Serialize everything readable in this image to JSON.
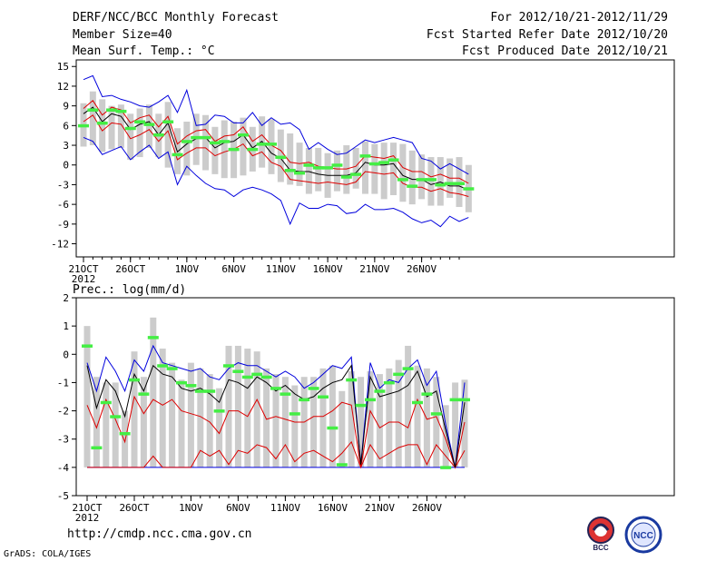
{
  "header": {
    "title": "DERF/NCC/BCC Monthly Forecast",
    "member_size": "Member Size=40",
    "var1": "Mean Surf. Temp.: °C",
    "period": "For 2012/10/21-2012/11/29",
    "started": "Fcst Started Refer Date 2012/10/20",
    "produced": "Fcst Produced Date 2012/10/21"
  },
  "footer": {
    "url": "http://cmdp.ncc.cma.gov.cn",
    "grads": "GrADS: COLA/IGES",
    "logo1_text": "BCC",
    "logo2_text": "NCC"
  },
  "colors": {
    "max_min": "#0000dd",
    "pct": "#dd0000",
    "mean": "#000000",
    "obs_bar": "#44ee44",
    "spread": "#cccccc"
  },
  "chart_data": [
    {
      "type": "line",
      "title": "Mean Surf. Temp.: °C",
      "ylabel": "°C",
      "ylim": [
        -14,
        16
      ],
      "yticks": [
        -12,
        -9,
        -6,
        -3,
        0,
        3,
        6,
        9,
        12,
        15
      ],
      "xticks": [
        {
          "day": 0,
          "label": "21OCT"
        },
        {
          "day": 5,
          "label": "26OCT"
        },
        {
          "day": 11,
          "label": "1NOV"
        },
        {
          "day": 16,
          "label": "6NOV"
        },
        {
          "day": 21,
          "label": "11NOV"
        },
        {
          "day": 26,
          "label": "16NOV"
        },
        {
          "day": 31,
          "label": "21NOV"
        },
        {
          "day": 36,
          "label": "26NOV"
        }
      ],
      "year_label": "2012",
      "series": [
        {
          "name": "max",
          "values": [
            13,
            13.6,
            10.4,
            10.6,
            10,
            9.6,
            9,
            8.8,
            9.6,
            10.6,
            8,
            11.4,
            6,
            6.2,
            7.6,
            7.4,
            6.4,
            6.4,
            8,
            6,
            7.2,
            6.2,
            6.4,
            5.4,
            2.4,
            3.4,
            2.4,
            1.6,
            1.8,
            2.8,
            3.8,
            3.4,
            3.8,
            4.2,
            3.8,
            3.4,
            1,
            0.6,
            -0.6,
            0.2,
            -0.6,
            -1.4
          ]
        },
        {
          "name": "p90",
          "values": [
            8.6,
            9.8,
            7.6,
            8.8,
            8.4,
            6.4,
            7.2,
            7.6,
            5.8,
            7.4,
            3.2,
            4.4,
            5.2,
            5.4,
            3.6,
            4.4,
            4.6,
            5.8,
            3.6,
            4.6,
            3,
            2.2,
            0.4,
            0.2,
            0.4,
            -0.2,
            -0.4,
            -0.6,
            -0.6,
            -0.2,
            1.4,
            1.2,
            1,
            1.4,
            -0.4,
            -1,
            -1,
            -1.8,
            -1.4,
            -2,
            -2,
            -2.8
          ]
        },
        {
          "name": "mean",
          "values": [
            7.8,
            8.8,
            6.6,
            7.8,
            7.4,
            5.4,
            6.2,
            6.6,
            4.6,
            6.4,
            2,
            3.2,
            4,
            4.2,
            2.6,
            3.4,
            3.6,
            4.6,
            2.6,
            3.6,
            1.8,
            1,
            -0.8,
            -1,
            -1,
            -1.4,
            -1.6,
            -1.6,
            -1.6,
            -1.2,
            0.4,
            0,
            0,
            0.2,
            -1.6,
            -2.2,
            -2.2,
            -3,
            -2.6,
            -3.2,
            -3.2,
            -3.8
          ]
        },
        {
          "name": "p10",
          "values": [
            6.6,
            7.6,
            5.2,
            6.4,
            6.2,
            4,
            4.6,
            5.4,
            3.6,
            5.2,
            0.8,
            1.8,
            2.6,
            2.6,
            1.4,
            2,
            2.4,
            3.2,
            1.4,
            2,
            0.4,
            -0.2,
            -2.2,
            -2.4,
            -2.6,
            -2.8,
            -2.6,
            -2.8,
            -3,
            -2.6,
            -1,
            -1.2,
            -1.4,
            -1.2,
            -2.8,
            -3.4,
            -3.4,
            -4,
            -3.6,
            -4.2,
            -4.4,
            -4.8
          ]
        },
        {
          "name": "min",
          "values": [
            4.2,
            3.6,
            1.6,
            2.2,
            2.8,
            0.8,
            2,
            3,
            1,
            2,
            -3,
            -0.2,
            -1.6,
            -2.8,
            -3.6,
            -3.8,
            -4.8,
            -3.8,
            -3.4,
            -3.8,
            -4.4,
            -5.4,
            -9,
            -5.8,
            -6.6,
            -6.6,
            -6,
            -6.2,
            -7.4,
            -7.2,
            -6,
            -6.8,
            -6.8,
            -6.6,
            -7.2,
            -8.2,
            -8.8,
            -8.4,
            -9.4,
            -7.8,
            -8.6,
            -8
          ]
        },
        {
          "name": "obs",
          "values": [
            6,
            8.4,
            6.4,
            8.4,
            8.2,
            5.6,
            6.6,
            6.2,
            4.6,
            6.6,
            1.6,
            3.6,
            4.2,
            4.2,
            3.4,
            3.6,
            2.4,
            4.6,
            2.4,
            3.2,
            3.2,
            1.2,
            -0.8,
            -1.2,
            0,
            -0.4,
            -0.4,
            0,
            -1.8,
            -1.4,
            1.4,
            0.2,
            0.4,
            0.8,
            -2.2,
            -3.2,
            -2.2,
            -2.2,
            -3,
            -2.8,
            -2.8,
            -3.6
          ]
        },
        {
          "name": "spread_low",
          "values": [
            2.8,
            3,
            2,
            2.4,
            2.6,
            0.8,
            1.2,
            2.6,
            1.2,
            -0.4,
            -1.4,
            -1.6,
            0,
            -0.8,
            -1.4,
            -2,
            -2,
            -1.6,
            -1,
            -0.4,
            -1.4,
            -2.6,
            -3,
            -3.2,
            -4.4,
            -4,
            -5,
            -4,
            -4.4,
            -3.6,
            -4.4,
            -4.4,
            -5.2,
            -4.6,
            -5.6,
            -6,
            -5.2,
            -6.2,
            -6.2,
            -5,
            -6.4,
            -7.2
          ]
        },
        {
          "name": "spread_high",
          "values": [
            9.4,
            11.2,
            10,
            9,
            9.2,
            7.8,
            8.6,
            9.2,
            7.8,
            9.6,
            5.6,
            6.6,
            7.8,
            7.6,
            5.8,
            6.8,
            6.6,
            7.2,
            5.8,
            7.4,
            7,
            5.4,
            4.8,
            3.4,
            2.6,
            2.6,
            1.8,
            2.2,
            3,
            2.6,
            3.6,
            3.2,
            3.4,
            3.4,
            3.2,
            2.2,
            1.6,
            1.2,
            1.2,
            1,
            1.2,
            0
          ]
        }
      ]
    },
    {
      "type": "line",
      "title": "Prec.: log(mm/d)",
      "ylabel": "log(mm/d)",
      "ylim": [
        -5,
        2
      ],
      "yticks": [
        -5,
        -4,
        -3,
        -2,
        -1,
        0,
        1,
        2
      ],
      "xticks": [
        {
          "day": 0,
          "label": "21OCT"
        },
        {
          "day": 5,
          "label": "26OCT"
        },
        {
          "day": 11,
          "label": "1NOV"
        },
        {
          "day": 16,
          "label": "6NOV"
        },
        {
          "day": 21,
          "label": "11NOV"
        },
        {
          "day": 26,
          "label": "16NOV"
        },
        {
          "day": 31,
          "label": "21NOV"
        },
        {
          "day": 36,
          "label": "26NOV"
        }
      ],
      "year_label": "2012",
      "series": [
        {
          "name": "max",
          "values": [
            -0.3,
            -1.3,
            -0.1,
            -0.6,
            -1.3,
            -0.2,
            -0.6,
            0.3,
            -0.3,
            -0.4,
            -0.5,
            -0.6,
            -0.5,
            -0.8,
            -0.9,
            -0.5,
            -0.3,
            -0.4,
            -0.4,
            -0.6,
            -0.8,
            -0.6,
            -0.8,
            -1.2,
            -1.0,
            -0.7,
            -0.4,
            -0.5,
            -0.1,
            -3.9,
            -0.3,
            -1.2,
            -0.9,
            -1.0,
            -0.5,
            -0.2,
            -1.1,
            -0.6,
            -2.5,
            -4.0,
            -1.0
          ]
        },
        {
          "name": "mean",
          "values": [
            -0.4,
            -1.9,
            -0.9,
            -1.3,
            -2.2,
            -0.7,
            -1.3,
            -0.4,
            -0.7,
            -0.8,
            -1.2,
            -1.3,
            -1.2,
            -1.4,
            -1.7,
            -0.9,
            -1.0,
            -1.2,
            -0.8,
            -1.0,
            -1.3,
            -1.1,
            -1.4,
            -1.6,
            -1.5,
            -1.2,
            -1.0,
            -0.9,
            -0.4,
            -3.9,
            -0.8,
            -1.5,
            -1.4,
            -1.3,
            -1.1,
            -0.6,
            -1.5,
            -1.3,
            -2.7,
            -4.0,
            -1.7
          ]
        },
        {
          "name": "p10",
          "values": [
            -1.8,
            -2.6,
            -1.6,
            -2.3,
            -3.1,
            -1.5,
            -2.1,
            -1.6,
            -1.8,
            -1.6,
            -2.0,
            -2.1,
            -2.2,
            -2.4,
            -2.8,
            -2.0,
            -2.0,
            -2.2,
            -1.6,
            -2.3,
            -2.2,
            -2.3,
            -2.4,
            -2.4,
            -2.2,
            -2.2,
            -2.0,
            -1.7,
            -1.8,
            -4.0,
            -2.0,
            -2.6,
            -2.4,
            -2.4,
            -2.6,
            -1.6,
            -2.3,
            -2.2,
            -3.0,
            -4.0,
            -2.4
          ]
        },
        {
          "name": "p25",
          "values": [
            -4.0,
            -4.0,
            -4.0,
            -4.0,
            -4.0,
            -4.0,
            -4.0,
            -3.6,
            -4.0,
            -4.0,
            -4.0,
            -4.0,
            -3.4,
            -3.6,
            -3.4,
            -3.9,
            -3.4,
            -3.5,
            -3.2,
            -3.3,
            -3.7,
            -3.2,
            -3.8,
            -3.5,
            -3.4,
            -3.6,
            -3.8,
            -3.5,
            -3.1,
            -4.0,
            -3.2,
            -3.7,
            -3.5,
            -3.3,
            -3.2,
            -3.2,
            -3.9,
            -3.2,
            -3.6,
            -4.0,
            -3.4
          ]
        },
        {
          "name": "min",
          "values": [
            -4.0,
            -4.0,
            -4.0,
            -4.0,
            -4.0,
            -4.0,
            -4.0,
            -4.0,
            -4.0,
            -4.0,
            -4.0,
            -4.0,
            -4.0,
            -4.0,
            -4.0,
            -4.0,
            -4.0,
            -4.0,
            -4.0,
            -4.0,
            -4.0,
            -4.0,
            -4.0,
            -4.0,
            -4.0,
            -4.0,
            -4.0,
            -4.0,
            -4.0,
            -4.0,
            -4.0,
            -4.0,
            -4.0,
            -4.0,
            -4.0,
            -4.0,
            -4.0,
            -4.0,
            -4.0,
            -4.0,
            -4.0
          ]
        },
        {
          "name": "obs",
          "values": [
            0.3,
            -3.3,
            -1.7,
            -2.2,
            -2.8,
            -0.9,
            -1.4,
            0.6,
            -0.4,
            -0.5,
            -1.0,
            -1.1,
            -1.3,
            -1.3,
            -2.0,
            -0.4,
            -0.6,
            -0.8,
            -0.7,
            -0.8,
            -1.2,
            -1.4,
            -2.1,
            -1.6,
            -1.2,
            -1.5,
            -2.6,
            -3.9,
            -0.9,
            -1.8,
            -1.6,
            -1.3,
            -1.0,
            -0.7,
            -0.5,
            -1.7,
            -1.4,
            -2.1,
            -4.0,
            -1.6,
            -1.6
          ]
        },
        {
          "name": "spread_low",
          "values": [
            -4.0,
            -4.0,
            -4.0,
            -4.0,
            -4.0,
            -4.0,
            -4.0,
            -4.0,
            -4.0,
            -4.0,
            -4.0,
            -4.0,
            -4.0,
            -4.0,
            -4.0,
            -4.0,
            -4.0,
            -4.0,
            -4.0,
            -4.0,
            -4.0,
            -4.0,
            -4.0,
            -4.0,
            -4.0,
            -4.0,
            -4.0,
            -4.0,
            -4.0,
            -4.0,
            -4.0,
            -4.0,
            -4.0,
            -4.0,
            -4.0,
            -4.0,
            -4.0,
            -4.0,
            -4.0,
            -4.0,
            -4.0
          ]
        },
        {
          "name": "spread_high",
          "values": [
            1.0,
            -0.8,
            -1.0,
            -1.0,
            -2.0,
            0.1,
            -0.8,
            1.3,
            0.2,
            -0.3,
            -0.9,
            -0.3,
            -0.5,
            -0.7,
            -1.2,
            0.3,
            0.3,
            0.2,
            0.1,
            -0.5,
            -0.7,
            -0.8,
            -1.1,
            -0.8,
            -0.8,
            -0.5,
            -0.4,
            -1.3,
            -0.6,
            -0.8,
            -0.6,
            -0.7,
            -0.5,
            -0.2,
            0.3,
            -0.4,
            -0.5,
            -0.8,
            -1.8,
            -1.0,
            -0.9
          ]
        }
      ]
    }
  ]
}
